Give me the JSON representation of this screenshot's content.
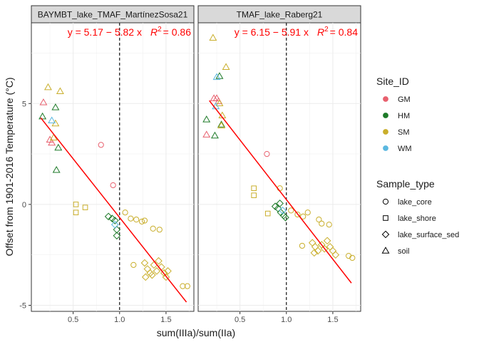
{
  "chart_data": {
    "type": "scatter",
    "xlabel": "sum(IIIa)/sum(IIa)",
    "ylabel": "Offset from 1901-2016 Temperature (°C)",
    "xlim": [
      0.05,
      1.8
    ],
    "ylim": [
      -5.3,
      9.0
    ],
    "x_ticks": [
      0.5,
      1.0,
      1.5
    ],
    "y_ticks": [
      -5,
      0,
      5
    ],
    "x_tick_labels": [
      "0.5",
      "1.0",
      "1.5"
    ],
    "y_tick_labels": [
      "-5",
      "0",
      "5"
    ],
    "vline_x": 1.0,
    "grid": true,
    "legend_position": "right",
    "site_legend": {
      "title": "Site_ID",
      "items": [
        {
          "label": "GM",
          "color": "#e8606e"
        },
        {
          "label": "HM",
          "color": "#1d7a28"
        },
        {
          "label": "SM",
          "color": "#c9ae2b"
        },
        {
          "label": "WM",
          "color": "#5bb8e0"
        }
      ]
    },
    "shape_legend": {
      "title": "Sample_type",
      "items": [
        {
          "label": "lake_core",
          "shape": "circle"
        },
        {
          "label": "lake_shore",
          "shape": "square"
        },
        {
          "label": "lake_surface_sed",
          "shape": "diamond"
        },
        {
          "label": "soil",
          "shape": "triangle"
        }
      ]
    },
    "panels": [
      {
        "strip": "BAYMBT_lake_TMAF_MartínezSosa21",
        "eq_prefix": "y = 5.17 − 5.82 x",
        "r2_value": "= 0.86",
        "fit": {
          "intercept": 5.17,
          "slope": -5.82,
          "x_from": 0.15,
          "x_to": 1.72
        },
        "points": [
          {
            "x": 0.18,
            "y": 5.05,
            "site": "GM",
            "shape": "triangle"
          },
          {
            "x": 0.25,
            "y": 3.2,
            "site": "GM",
            "shape": "triangle"
          },
          {
            "x": 0.27,
            "y": 3.05,
            "site": "GM",
            "shape": "triangle"
          },
          {
            "x": 0.8,
            "y": 2.95,
            "site": "GM",
            "shape": "circle"
          },
          {
            "x": 0.93,
            "y": 0.95,
            "site": "GM",
            "shape": "circle"
          },
          {
            "x": 0.17,
            "y": 4.35,
            "site": "HM",
            "shape": "triangle"
          },
          {
            "x": 0.31,
            "y": 4.8,
            "site": "HM",
            "shape": "triangle"
          },
          {
            "x": 0.34,
            "y": 2.8,
            "site": "HM",
            "shape": "triangle"
          },
          {
            "x": 0.32,
            "y": 1.7,
            "site": "HM",
            "shape": "triangle"
          },
          {
            "x": 0.92,
            "y": -0.7,
            "site": "HM",
            "shape": "diamond"
          },
          {
            "x": 0.95,
            "y": -0.8,
            "site": "HM",
            "shape": "diamond"
          },
          {
            "x": 0.97,
            "y": -1.25,
            "site": "HM",
            "shape": "diamond"
          },
          {
            "x": 0.97,
            "y": -1.55,
            "site": "HM",
            "shape": "diamond"
          },
          {
            "x": 0.88,
            "y": -0.6,
            "site": "HM",
            "shape": "diamond"
          },
          {
            "x": 0.23,
            "y": 5.8,
            "site": "SM",
            "shape": "triangle"
          },
          {
            "x": 0.36,
            "y": 5.6,
            "site": "SM",
            "shape": "triangle"
          },
          {
            "x": 0.31,
            "y": 4.0,
            "site": "SM",
            "shape": "triangle"
          },
          {
            "x": 0.29,
            "y": 3.3,
            "site": "SM",
            "shape": "triangle"
          },
          {
            "x": 0.53,
            "y": 0.0,
            "site": "SM",
            "shape": "square"
          },
          {
            "x": 0.53,
            "y": -0.4,
            "site": "SM",
            "shape": "square"
          },
          {
            "x": 0.63,
            "y": -0.15,
            "site": "SM",
            "shape": "square"
          },
          {
            "x": 1.06,
            "y": -0.4,
            "site": "SM",
            "shape": "circle"
          },
          {
            "x": 1.12,
            "y": -0.7,
            "site": "SM",
            "shape": "circle"
          },
          {
            "x": 1.18,
            "y": -0.75,
            "site": "SM",
            "shape": "circle"
          },
          {
            "x": 1.24,
            "y": -0.85,
            "site": "SM",
            "shape": "circle"
          },
          {
            "x": 1.27,
            "y": -0.8,
            "site": "SM",
            "shape": "circle"
          },
          {
            "x": 1.36,
            "y": -1.2,
            "site": "SM",
            "shape": "circle"
          },
          {
            "x": 1.43,
            "y": -1.25,
            "site": "SM",
            "shape": "circle"
          },
          {
            "x": 1.15,
            "y": -3.0,
            "site": "SM",
            "shape": "circle"
          },
          {
            "x": 1.68,
            "y": -4.05,
            "site": "SM",
            "shape": "circle"
          },
          {
            "x": 1.73,
            "y": -4.05,
            "site": "SM",
            "shape": "circle"
          },
          {
            "x": 1.27,
            "y": -2.9,
            "site": "SM",
            "shape": "diamond"
          },
          {
            "x": 1.3,
            "y": -3.2,
            "site": "SM",
            "shape": "diamond"
          },
          {
            "x": 1.33,
            "y": -3.4,
            "site": "SM",
            "shape": "diamond"
          },
          {
            "x": 1.37,
            "y": -3.0,
            "site": "SM",
            "shape": "diamond"
          },
          {
            "x": 1.4,
            "y": -3.3,
            "site": "SM",
            "shape": "diamond"
          },
          {
            "x": 1.42,
            "y": -2.8,
            "site": "SM",
            "shape": "diamond"
          },
          {
            "x": 1.45,
            "y": -3.1,
            "site": "SM",
            "shape": "diamond"
          },
          {
            "x": 1.48,
            "y": -3.4,
            "site": "SM",
            "shape": "diamond"
          },
          {
            "x": 1.5,
            "y": -3.6,
            "site": "SM",
            "shape": "diamond"
          },
          {
            "x": 1.52,
            "y": -3.3,
            "site": "SM",
            "shape": "diamond"
          },
          {
            "x": 1.35,
            "y": -3.5,
            "site": "SM",
            "shape": "diamond"
          },
          {
            "x": 1.28,
            "y": -3.6,
            "site": "SM",
            "shape": "diamond"
          },
          {
            "x": 0.27,
            "y": 4.15,
            "site": "WM",
            "shape": "triangle"
          },
          {
            "x": 0.95,
            "y": -1.0,
            "site": "WM",
            "shape": "diamond"
          }
        ]
      },
      {
        "strip": "TMAF_lake_Raberg21",
        "eq_prefix": "y = 6.15 − 5.91 x",
        "r2_value": "= 0.84",
        "fit": {
          "intercept": 6.15,
          "slope": -5.91,
          "x_from": 0.17,
          "x_to": 1.7
        },
        "points": [
          {
            "x": 0.22,
            "y": 5.25,
            "site": "GM",
            "shape": "triangle"
          },
          {
            "x": 0.25,
            "y": 5.25,
            "site": "GM",
            "shape": "triangle"
          },
          {
            "x": 0.27,
            "y": 5.1,
            "site": "GM",
            "shape": "triangle"
          },
          {
            "x": 0.14,
            "y": 3.45,
            "site": "GM",
            "shape": "triangle"
          },
          {
            "x": 0.79,
            "y": 2.5,
            "site": "GM",
            "shape": "circle"
          },
          {
            "x": 0.14,
            "y": 4.2,
            "site": "HM",
            "shape": "triangle"
          },
          {
            "x": 0.28,
            "y": 6.35,
            "site": "HM",
            "shape": "triangle"
          },
          {
            "x": 0.3,
            "y": 3.95,
            "site": "HM",
            "shape": "triangle"
          },
          {
            "x": 0.23,
            "y": 3.4,
            "site": "HM",
            "shape": "triangle"
          },
          {
            "x": 0.88,
            "y": -0.1,
            "site": "HM",
            "shape": "diamond"
          },
          {
            "x": 0.91,
            "y": -0.2,
            "site": "HM",
            "shape": "diamond"
          },
          {
            "x": 0.94,
            "y": -0.4,
            "site": "HM",
            "shape": "diamond"
          },
          {
            "x": 0.97,
            "y": -0.55,
            "site": "HM",
            "shape": "diamond"
          },
          {
            "x": 0.99,
            "y": -0.65,
            "site": "HM",
            "shape": "diamond"
          },
          {
            "x": 0.93,
            "y": 0.05,
            "site": "HM",
            "shape": "diamond"
          },
          {
            "x": 0.21,
            "y": 8.25,
            "site": "SM",
            "shape": "triangle"
          },
          {
            "x": 0.35,
            "y": 6.8,
            "site": "SM",
            "shape": "triangle"
          },
          {
            "x": 0.28,
            "y": 5.0,
            "site": "SM",
            "shape": "triangle"
          },
          {
            "x": 0.31,
            "y": 4.4,
            "site": "SM",
            "shape": "triangle"
          },
          {
            "x": 0.3,
            "y": 3.9,
            "site": "SM",
            "shape": "triangle"
          },
          {
            "x": 0.65,
            "y": 0.8,
            "site": "SM",
            "shape": "square"
          },
          {
            "x": 0.65,
            "y": 0.45,
            "site": "SM",
            "shape": "square"
          },
          {
            "x": 0.8,
            "y": -0.45,
            "site": "SM",
            "shape": "square"
          },
          {
            "x": 0.93,
            "y": 0.8,
            "site": "SM",
            "shape": "circle"
          },
          {
            "x": 1.05,
            "y": -0.3,
            "site": "SM",
            "shape": "circle"
          },
          {
            "x": 1.12,
            "y": -0.5,
            "site": "SM",
            "shape": "circle"
          },
          {
            "x": 1.18,
            "y": -0.6,
            "site": "SM",
            "shape": "circle"
          },
          {
            "x": 1.23,
            "y": -0.4,
            "site": "SM",
            "shape": "circle"
          },
          {
            "x": 1.35,
            "y": -0.75,
            "site": "SM",
            "shape": "circle"
          },
          {
            "x": 1.38,
            "y": -0.95,
            "site": "SM",
            "shape": "circle"
          },
          {
            "x": 1.46,
            "y": -1.0,
            "site": "SM",
            "shape": "circle"
          },
          {
            "x": 1.17,
            "y": -2.05,
            "site": "SM",
            "shape": "circle"
          },
          {
            "x": 1.67,
            "y": -2.55,
            "site": "SM",
            "shape": "circle"
          },
          {
            "x": 1.71,
            "y": -2.65,
            "site": "SM",
            "shape": "circle"
          },
          {
            "x": 1.28,
            "y": -1.9,
            "site": "SM",
            "shape": "diamond"
          },
          {
            "x": 1.31,
            "y": -2.1,
            "site": "SM",
            "shape": "diamond"
          },
          {
            "x": 1.34,
            "y": -2.3,
            "site": "SM",
            "shape": "diamond"
          },
          {
            "x": 1.38,
            "y": -2.0,
            "site": "SM",
            "shape": "diamond"
          },
          {
            "x": 1.41,
            "y": -2.2,
            "site": "SM",
            "shape": "diamond"
          },
          {
            "x": 1.44,
            "y": -1.8,
            "site": "SM",
            "shape": "diamond"
          },
          {
            "x": 1.47,
            "y": -2.1,
            "site": "SM",
            "shape": "diamond"
          },
          {
            "x": 1.5,
            "y": -2.3,
            "site": "SM",
            "shape": "diamond"
          },
          {
            "x": 1.53,
            "y": -2.5,
            "site": "SM",
            "shape": "diamond"
          },
          {
            "x": 1.3,
            "y": -2.4,
            "site": "SM",
            "shape": "diamond"
          },
          {
            "x": 0.24,
            "y": 4.85,
            "site": "WM",
            "shape": "triangle"
          },
          {
            "x": 0.25,
            "y": 6.3,
            "site": "WM",
            "shape": "triangle"
          },
          {
            "x": 0.96,
            "y": -0.3,
            "site": "WM",
            "shape": "diamond"
          }
        ]
      }
    ]
  }
}
